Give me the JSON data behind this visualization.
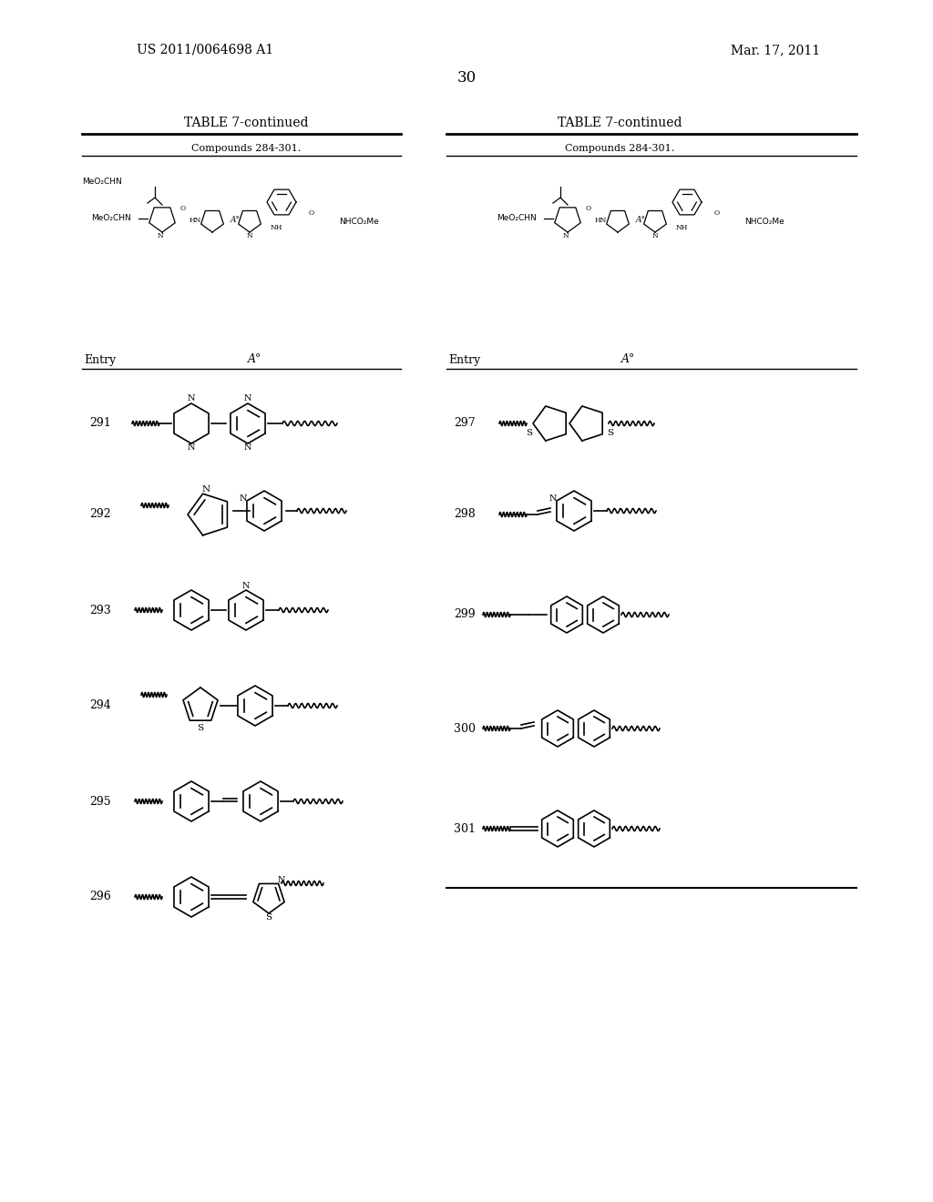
{
  "page_header_left": "US 2011/0064698 A1",
  "page_header_right": "Mar. 17, 2011",
  "page_number": "30",
  "table_title": "TABLE 7-continued",
  "table_subtitle": "Compounds 284-301.",
  "background_color": "#ffffff",
  "text_color": "#000000",
  "left_entries": [
    "291",
    "292",
    "293",
    "294",
    "295",
    "296"
  ],
  "right_entries": [
    "297",
    "298",
    "299",
    "300",
    "301"
  ],
  "header_fontsize": 10,
  "table_title_fontsize": 9,
  "entry_fontsize": 8,
  "Astar_label": "A°",
  "Entry_label": "Entry"
}
